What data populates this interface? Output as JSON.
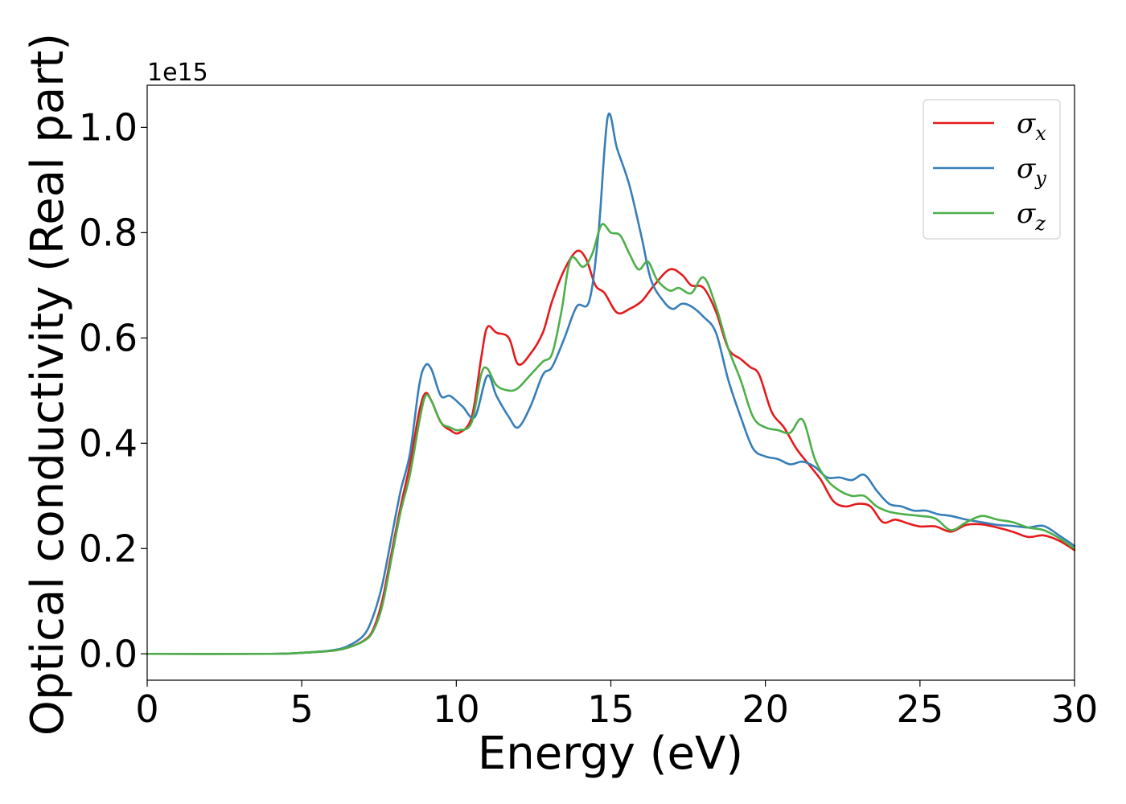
{
  "chart_data": {
    "type": "line",
    "xlabel": "Energy (eV)",
    "ylabel": "Optical conductivity (Real part)",
    "offset_text": "1e15",
    "xlim": [
      0,
      30
    ],
    "ylim": [
      -0.05,
      1.08
    ],
    "xticks": [
      0,
      5,
      10,
      15,
      20,
      25,
      30
    ],
    "yticks": [
      0.0,
      0.2,
      0.4,
      0.6,
      0.8,
      1.0
    ],
    "xtick_labels": [
      "0",
      "5",
      "10",
      "15",
      "20",
      "25",
      "30"
    ],
    "ytick_labels": [
      "0.0",
      "0.2",
      "0.4",
      "0.6",
      "0.8",
      "1.0"
    ],
    "grid": false,
    "legend_position": "top-right",
    "series": [
      {
        "name": "σx",
        "sub": "x",
        "color": "#e41a1c",
        "points": [
          [
            0,
            0
          ],
          [
            4,
            0
          ],
          [
            5,
            0.002
          ],
          [
            6,
            0.006
          ],
          [
            6.5,
            0.012
          ],
          [
            7,
            0.025
          ],
          [
            7.3,
            0.045
          ],
          [
            7.6,
            0.1
          ],
          [
            7.9,
            0.19
          ],
          [
            8.2,
            0.28
          ],
          [
            8.5,
            0.36
          ],
          [
            8.8,
            0.46
          ],
          [
            9.0,
            0.495
          ],
          [
            9.2,
            0.48
          ],
          [
            9.5,
            0.44
          ],
          [
            9.8,
            0.425
          ],
          [
            10.1,
            0.42
          ],
          [
            10.5,
            0.45
          ],
          [
            10.8,
            0.56
          ],
          [
            11.0,
            0.62
          ],
          [
            11.3,
            0.61
          ],
          [
            11.7,
            0.6
          ],
          [
            12.0,
            0.55
          ],
          [
            12.4,
            0.57
          ],
          [
            12.8,
            0.61
          ],
          [
            13.1,
            0.67
          ],
          [
            13.5,
            0.73
          ],
          [
            13.9,
            0.765
          ],
          [
            14.2,
            0.75
          ],
          [
            14.5,
            0.7
          ],
          [
            14.8,
            0.685
          ],
          [
            15.2,
            0.648
          ],
          [
            15.6,
            0.655
          ],
          [
            16.0,
            0.67
          ],
          [
            16.4,
            0.7
          ],
          [
            16.9,
            0.73
          ],
          [
            17.3,
            0.72
          ],
          [
            17.6,
            0.7
          ],
          [
            18.0,
            0.695
          ],
          [
            18.4,
            0.65
          ],
          [
            18.8,
            0.58
          ],
          [
            19.2,
            0.56
          ],
          [
            19.5,
            0.545
          ],
          [
            19.8,
            0.53
          ],
          [
            20.2,
            0.46
          ],
          [
            20.6,
            0.43
          ],
          [
            21.0,
            0.39
          ],
          [
            21.4,
            0.36
          ],
          [
            21.8,
            0.33
          ],
          [
            22.2,
            0.29
          ],
          [
            22.6,
            0.28
          ],
          [
            23.0,
            0.285
          ],
          [
            23.4,
            0.28
          ],
          [
            23.8,
            0.25
          ],
          [
            24.2,
            0.255
          ],
          [
            24.6,
            0.248
          ],
          [
            25,
            0.242
          ],
          [
            25.5,
            0.242
          ],
          [
            26.0,
            0.232
          ],
          [
            26.5,
            0.245
          ],
          [
            27.0,
            0.246
          ],
          [
            27.5,
            0.24
          ],
          [
            28.0,
            0.232
          ],
          [
            28.5,
            0.222
          ],
          [
            29.0,
            0.225
          ],
          [
            29.5,
            0.215
          ],
          [
            30,
            0.197
          ]
        ]
      },
      {
        "name": "σy",
        "sub": "y",
        "color": "#377eb8",
        "points": [
          [
            0,
            0
          ],
          [
            4,
            0
          ],
          [
            5,
            0.002
          ],
          [
            6,
            0.007
          ],
          [
            6.5,
            0.015
          ],
          [
            7,
            0.035
          ],
          [
            7.3,
            0.07
          ],
          [
            7.6,
            0.13
          ],
          [
            7.9,
            0.22
          ],
          [
            8.2,
            0.31
          ],
          [
            8.5,
            0.38
          ],
          [
            8.8,
            0.51
          ],
          [
            9.0,
            0.548
          ],
          [
            9.2,
            0.54
          ],
          [
            9.5,
            0.49
          ],
          [
            9.8,
            0.49
          ],
          [
            10.2,
            0.47
          ],
          [
            10.6,
            0.45
          ],
          [
            11.0,
            0.528
          ],
          [
            11.3,
            0.49
          ],
          [
            11.7,
            0.45
          ],
          [
            12.0,
            0.43
          ],
          [
            12.4,
            0.47
          ],
          [
            12.8,
            0.53
          ],
          [
            13.1,
            0.545
          ],
          [
            13.5,
            0.6
          ],
          [
            13.9,
            0.66
          ],
          [
            14.3,
            0.67
          ],
          [
            14.6,
            0.8
          ],
          [
            14.9,
            1.02
          ],
          [
            15.2,
            0.96
          ],
          [
            15.6,
            0.89
          ],
          [
            16.0,
            0.79
          ],
          [
            16.3,
            0.71
          ],
          [
            16.7,
            0.67
          ],
          [
            17.0,
            0.655
          ],
          [
            17.3,
            0.665
          ],
          [
            17.6,
            0.66
          ],
          [
            18.0,
            0.64
          ],
          [
            18.4,
            0.61
          ],
          [
            18.8,
            0.52
          ],
          [
            19.2,
            0.45
          ],
          [
            19.6,
            0.39
          ],
          [
            20.0,
            0.375
          ],
          [
            20.4,
            0.37
          ],
          [
            20.8,
            0.36
          ],
          [
            21.2,
            0.365
          ],
          [
            21.6,
            0.355
          ],
          [
            22.0,
            0.335
          ],
          [
            22.4,
            0.335
          ],
          [
            22.8,
            0.33
          ],
          [
            23.2,
            0.34
          ],
          [
            23.6,
            0.31
          ],
          [
            24.0,
            0.285
          ],
          [
            24.4,
            0.28
          ],
          [
            24.8,
            0.272
          ],
          [
            25.2,
            0.272
          ],
          [
            25.6,
            0.265
          ],
          [
            26.0,
            0.262
          ],
          [
            26.5,
            0.255
          ],
          [
            27.0,
            0.25
          ],
          [
            27.5,
            0.245
          ],
          [
            28.0,
            0.243
          ],
          [
            28.5,
            0.24
          ],
          [
            29.0,
            0.243
          ],
          [
            29.5,
            0.225
          ],
          [
            30,
            0.205
          ]
        ]
      },
      {
        "name": "σz",
        "sub": "z",
        "color": "#4daf4a",
        "points": [
          [
            0,
            0
          ],
          [
            4,
            0
          ],
          [
            5,
            0.002
          ],
          [
            6,
            0.006
          ],
          [
            6.5,
            0.012
          ],
          [
            7,
            0.024
          ],
          [
            7.3,
            0.042
          ],
          [
            7.6,
            0.09
          ],
          [
            7.9,
            0.18
          ],
          [
            8.2,
            0.27
          ],
          [
            8.5,
            0.34
          ],
          [
            8.8,
            0.44
          ],
          [
            9.0,
            0.49
          ],
          [
            9.2,
            0.48
          ],
          [
            9.5,
            0.44
          ],
          [
            9.8,
            0.43
          ],
          [
            10.1,
            0.425
          ],
          [
            10.5,
            0.44
          ],
          [
            10.8,
            0.53
          ],
          [
            11.0,
            0.542
          ],
          [
            11.3,
            0.51
          ],
          [
            11.7,
            0.5
          ],
          [
            12.0,
            0.505
          ],
          [
            12.4,
            0.53
          ],
          [
            12.8,
            0.555
          ],
          [
            13.1,
            0.57
          ],
          [
            13.4,
            0.65
          ],
          [
            13.7,
            0.75
          ],
          [
            14.1,
            0.735
          ],
          [
            14.4,
            0.76
          ],
          [
            14.7,
            0.815
          ],
          [
            15.0,
            0.8
          ],
          [
            15.3,
            0.795
          ],
          [
            15.6,
            0.76
          ],
          [
            15.9,
            0.73
          ],
          [
            16.2,
            0.745
          ],
          [
            16.5,
            0.71
          ],
          [
            16.9,
            0.69
          ],
          [
            17.2,
            0.695
          ],
          [
            17.6,
            0.685
          ],
          [
            18.0,
            0.715
          ],
          [
            18.4,
            0.66
          ],
          [
            18.8,
            0.58
          ],
          [
            19.2,
            0.52
          ],
          [
            19.6,
            0.45
          ],
          [
            20.0,
            0.43
          ],
          [
            20.4,
            0.425
          ],
          [
            20.8,
            0.42
          ],
          [
            21.2,
            0.445
          ],
          [
            21.6,
            0.37
          ],
          [
            22.0,
            0.33
          ],
          [
            22.4,
            0.31
          ],
          [
            22.8,
            0.3
          ],
          [
            23.2,
            0.3
          ],
          [
            23.6,
            0.28
          ],
          [
            24.0,
            0.27
          ],
          [
            24.5,
            0.265
          ],
          [
            25.0,
            0.262
          ],
          [
            25.5,
            0.257
          ],
          [
            26.0,
            0.235
          ],
          [
            26.5,
            0.25
          ],
          [
            27.0,
            0.262
          ],
          [
            27.5,
            0.255
          ],
          [
            28.0,
            0.25
          ],
          [
            28.5,
            0.24
          ],
          [
            29.0,
            0.235
          ],
          [
            29.5,
            0.22
          ],
          [
            30,
            0.2
          ]
        ]
      }
    ]
  }
}
